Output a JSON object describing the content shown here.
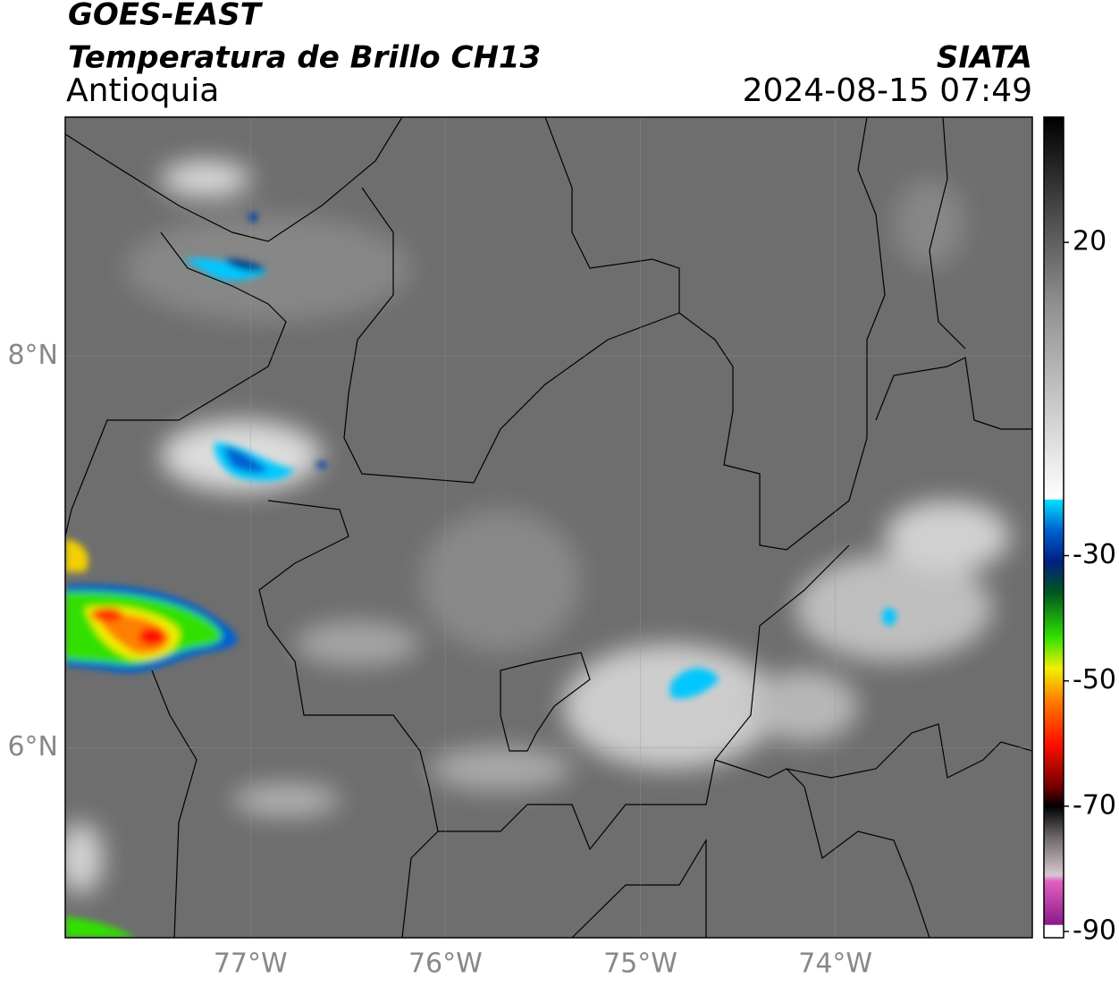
{
  "header": {
    "title": "GOES-EAST",
    "subtitle": "Temperatura de Brillo CH13",
    "region": "Antioquia",
    "source": "SIATA",
    "datetime": "2024-08-15 07:49"
  },
  "map": {
    "xlim": [
      -77.95,
      -72.99
    ],
    "ylim": [
      5.03,
      9.22
    ],
    "xticks": [
      {
        "value": -77,
        "label": "77°W"
      },
      {
        "value": -76,
        "label": "76°W"
      },
      {
        "value": -75,
        "label": "75°W"
      },
      {
        "value": -74,
        "label": "74°W"
      }
    ],
    "yticks": [
      {
        "value": 8,
        "label": "8°N"
      },
      {
        "value": 6,
        "label": "6°N"
      }
    ],
    "grid": true
  },
  "colorbar": {
    "lim": [
      -91,
      40
    ],
    "ticks": [
      20,
      -30,
      -50,
      -70,
      -90
    ],
    "stops": [
      {
        "value": -91,
        "color": "#ffffff"
      },
      {
        "value": -89,
        "color": "#ffffff"
      },
      {
        "value": -88.9,
        "color": "#8a1a8a"
      },
      {
        "value": -82,
        "color": "#e060c0"
      },
      {
        "value": -81,
        "color": "#d8c8d0"
      },
      {
        "value": -75,
        "color": "#706868"
      },
      {
        "value": -70,
        "color": "#000000"
      },
      {
        "value": -67,
        "color": "#700000"
      },
      {
        "value": -60,
        "color": "#ff1000"
      },
      {
        "value": -53,
        "color": "#ff8000"
      },
      {
        "value": -48,
        "color": "#f0f000"
      },
      {
        "value": -43,
        "color": "#30e000"
      },
      {
        "value": -36,
        "color": "#005820"
      },
      {
        "value": -31,
        "color": "#002080"
      },
      {
        "value": -26,
        "color": "#0060d0"
      },
      {
        "value": -21.1,
        "color": "#00e0ff"
      },
      {
        "value": -21,
        "color": "#ffffff"
      },
      {
        "value": 10,
        "color": "#909090"
      },
      {
        "value": 40,
        "color": "#000000"
      }
    ]
  }
}
